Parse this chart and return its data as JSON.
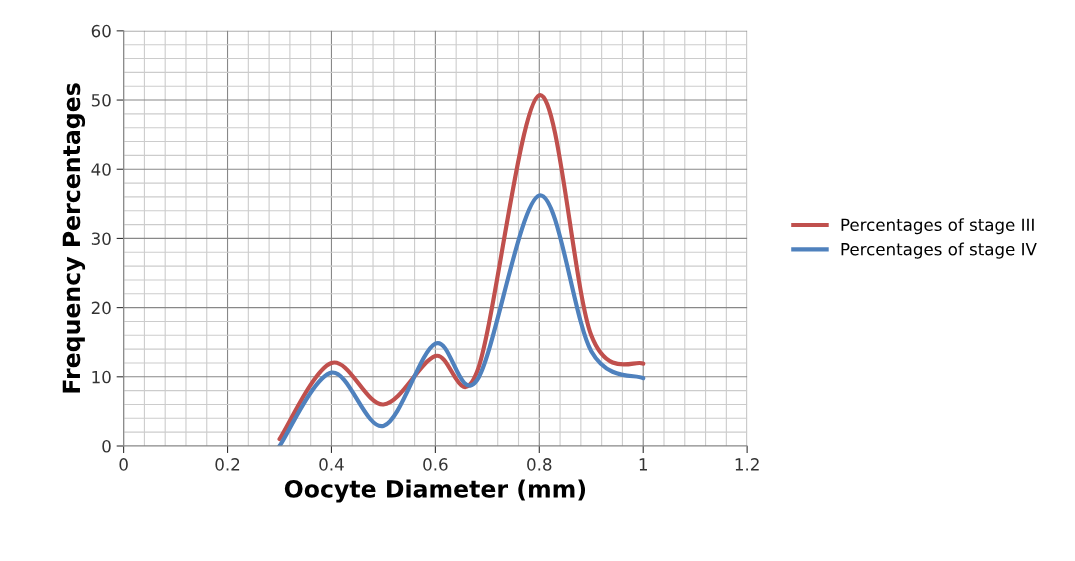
{
  "chart_data": {
    "type": "line",
    "xlabel": "Oocyte Diameter (mm)",
    "ylabel": "Frequency Percentages",
    "x": [
      0.3,
      0.4,
      0.5,
      0.6,
      0.68,
      0.8,
      0.9,
      1.0
    ],
    "series": [
      {
        "name": "Percentages of stage III",
        "color": "#c0504d",
        "values": [
          1,
          12,
          6,
          13,
          10.7,
          50.7,
          16,
          11.9
        ]
      },
      {
        "name": "Percentages of stage IV",
        "color": "#4f81bd",
        "values": [
          0,
          10.6,
          2.9,
          14.8,
          9.5,
          36.2,
          13.7,
          9.8
        ]
      }
    ],
    "xlim": [
      0,
      1.2
    ],
    "xticks": [
      0,
      0.2,
      0.4,
      0.6,
      0.8,
      1,
      1.2
    ],
    "ylim": [
      0,
      60
    ],
    "yticks": [
      0,
      10,
      20,
      30,
      40,
      50,
      60
    ],
    "grid": true,
    "legend": "right",
    "marker": "none",
    "line_style": "solid"
  }
}
